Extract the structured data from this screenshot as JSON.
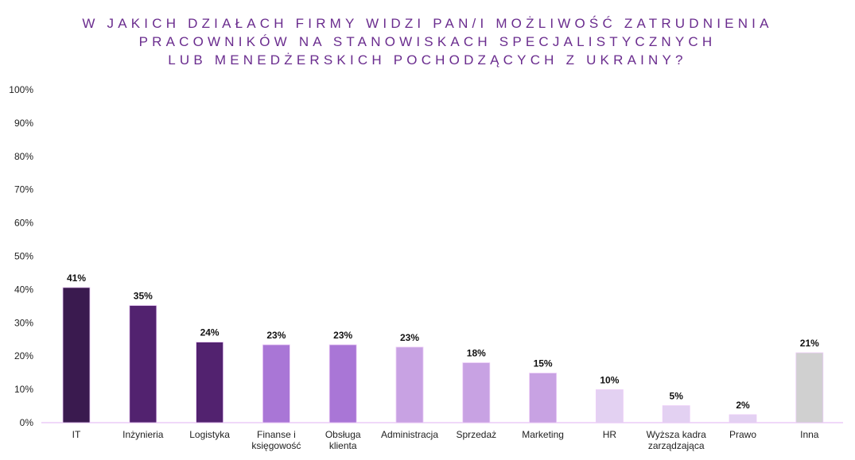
{
  "chart_data": {
    "type": "bar",
    "title_lines": [
      "W JAKICH DZIAŁACH FIRMY WIDZI PAN/I MOŻLIWOŚĆ ZATRUDNIENIA",
      "PRACOWNIKÓW NA STANOWISKACH SPECJALISTYCZNYCH",
      "LUB MENEDŻERSKICH POCHODZĄCYCH Z UKRAINY?"
    ],
    "categories": [
      [
        "IT"
      ],
      [
        "Inżynieria"
      ],
      [
        "Logistyka"
      ],
      [
        "Finanse i",
        "księgowość"
      ],
      [
        "Obsługa",
        "klienta"
      ],
      [
        "Administracja"
      ],
      [
        "Sprzedaż"
      ],
      [
        "Marketing"
      ],
      [
        "HR"
      ],
      [
        "Wyższa kadra",
        "zarządzająca"
      ],
      [
        "Prawo"
      ],
      [
        "Inna"
      ]
    ],
    "values": [
      40.6,
      35.2,
      24.2,
      23.4,
      23.4,
      22.7,
      18.0,
      14.9,
      9.9,
      5.1,
      2.4,
      21.0
    ],
    "labels": [
      "41%",
      "35%",
      "24%",
      "23%",
      "23%",
      "23%",
      "18%",
      "15%",
      "10%",
      "5%",
      "2%",
      "21%"
    ],
    "colors": [
      "#3a1a4f",
      "#52226f",
      "#52226f",
      "#a976d6",
      "#a976d6",
      "#c8a2e3",
      "#c8a2e3",
      "#c8a2e3",
      "#e3d1f2",
      "#e3d1f2",
      "#e3d1f2",
      "#d0d0d0"
    ],
    "ylim": [
      0,
      100
    ],
    "yticks": [
      "0%",
      "10%",
      "20%",
      "30%",
      "40%",
      "50%",
      "60%",
      "70%",
      "80%",
      "90%",
      "100%"
    ],
    "xlabel": "",
    "ylabel": "",
    "grid": false
  }
}
